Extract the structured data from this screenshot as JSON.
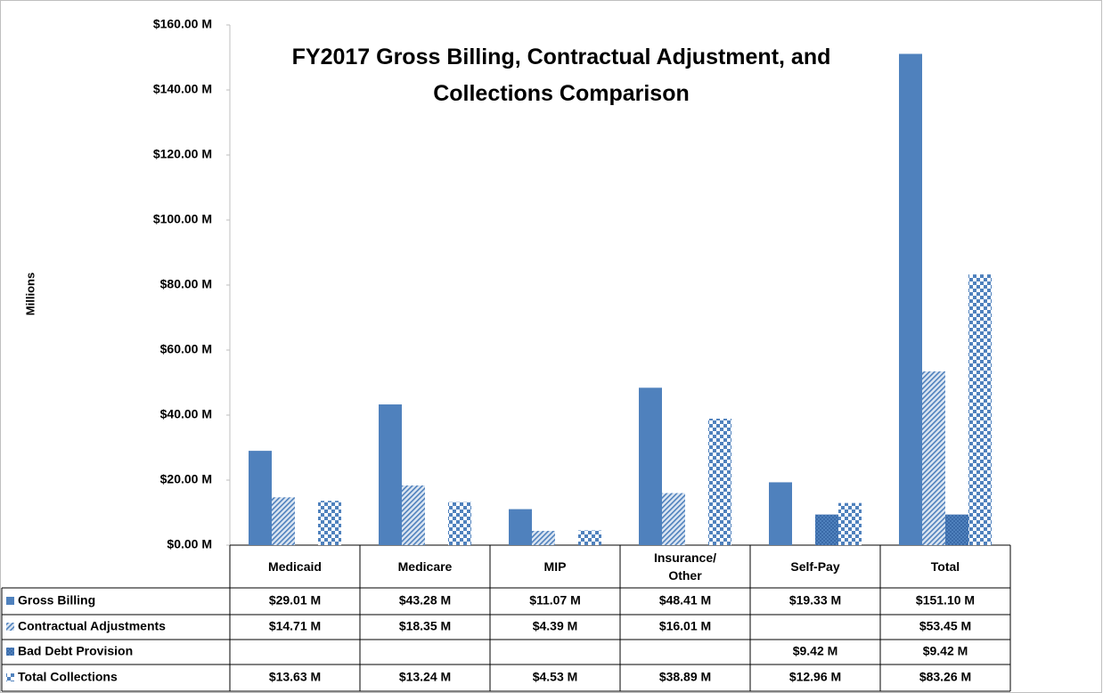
{
  "chart_data": {
    "type": "bar",
    "title": "FY2017 Gross Billing, Contractual Adjustment, and Collections Comparison",
    "y_label": "Millions",
    "categories": [
      "Medicaid",
      "Medicare",
      "MIP",
      "Insurance/ Other",
      "Self-Pay",
      "Total"
    ],
    "series": [
      {
        "name": "Gross Billing",
        "color": "#4f81bd",
        "values": [
          29.01,
          43.28,
          11.07,
          48.41,
          19.33,
          151.1
        ],
        "value_labels": [
          "$29.01 M",
          "$43.28 M",
          "$11.07 M",
          "$48.41 M",
          "$19.33 M",
          "$151.10 M"
        ]
      },
      {
        "name": "Contractual Adjustments",
        "color": "#4f81bd",
        "values": [
          14.71,
          18.35,
          4.39,
          16.01,
          null,
          53.45
        ],
        "value_labels": [
          "$14.71 M",
          "$18.35 M",
          "$4.39 M",
          "$16.01 M",
          null,
          "$53.45 M"
        ]
      },
      {
        "name": "Bad Debt Provision",
        "color": "#4f81bd",
        "values": [
          null,
          null,
          null,
          null,
          9.42,
          9.42
        ],
        "value_labels": [
          null,
          null,
          null,
          null,
          "$9.42 M",
          "$9.42 M"
        ]
      },
      {
        "name": "Total Collections",
        "color": "#4f81bd",
        "values": [
          13.63,
          13.24,
          4.53,
          38.89,
          12.96,
          83.26
        ],
        "value_labels": [
          "$13.63 M",
          "$13.24 M",
          "$4.53 M",
          "$38.89 M",
          "$12.96 M",
          "$83.26 M"
        ]
      }
    ],
    "ylim": [
      0,
      160
    ],
    "yticks": [
      {
        "value": 0,
        "label": "$0.00 M"
      },
      {
        "value": 20,
        "label": "$20.00 M"
      },
      {
        "value": 40,
        "label": "$40.00 M"
      },
      {
        "value": 60,
        "label": "$60.00 M"
      },
      {
        "value": 80,
        "label": "$80.00 M"
      },
      {
        "value": 100,
        "label": "$100.00 M"
      },
      {
        "value": 120,
        "label": "$120.00 M"
      },
      {
        "value": 140,
        "label": "$140.00 M"
      },
      {
        "value": 160,
        "label": "$160.00 M"
      }
    ],
    "grid": false,
    "data_table": true
  }
}
